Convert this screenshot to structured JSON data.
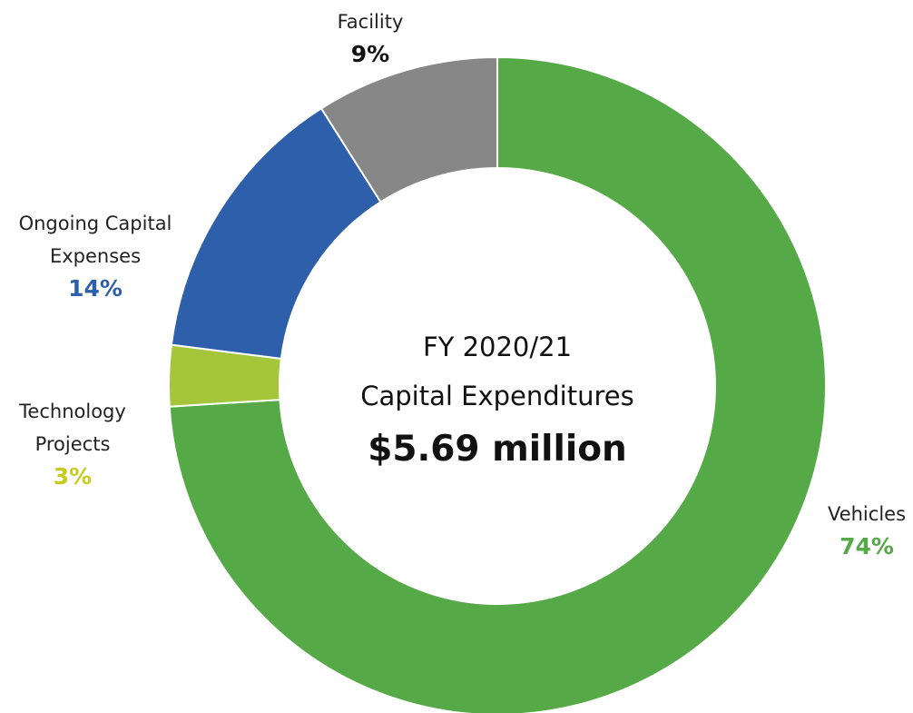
{
  "chart_data": {
    "type": "donut",
    "categories": [
      "Vehicles",
      "Technology Projects",
      "Ongoing Capital Expenses",
      "Facility"
    ],
    "values": [
      74,
      3,
      14,
      9
    ],
    "value_labels": [
      "74%",
      "3%",
      "14%",
      "9%"
    ],
    "colors": [
      "#55a947",
      "#a5c63b",
      "#2e5faa",
      "#878787"
    ],
    "label_colors": [
      "#55a947",
      "#c8cc1e",
      "#2e5faa",
      "#111111"
    ],
    "center_text": [
      "FY 2020/21",
      "Capital Expenditures",
      "$5.69 million"
    ]
  }
}
